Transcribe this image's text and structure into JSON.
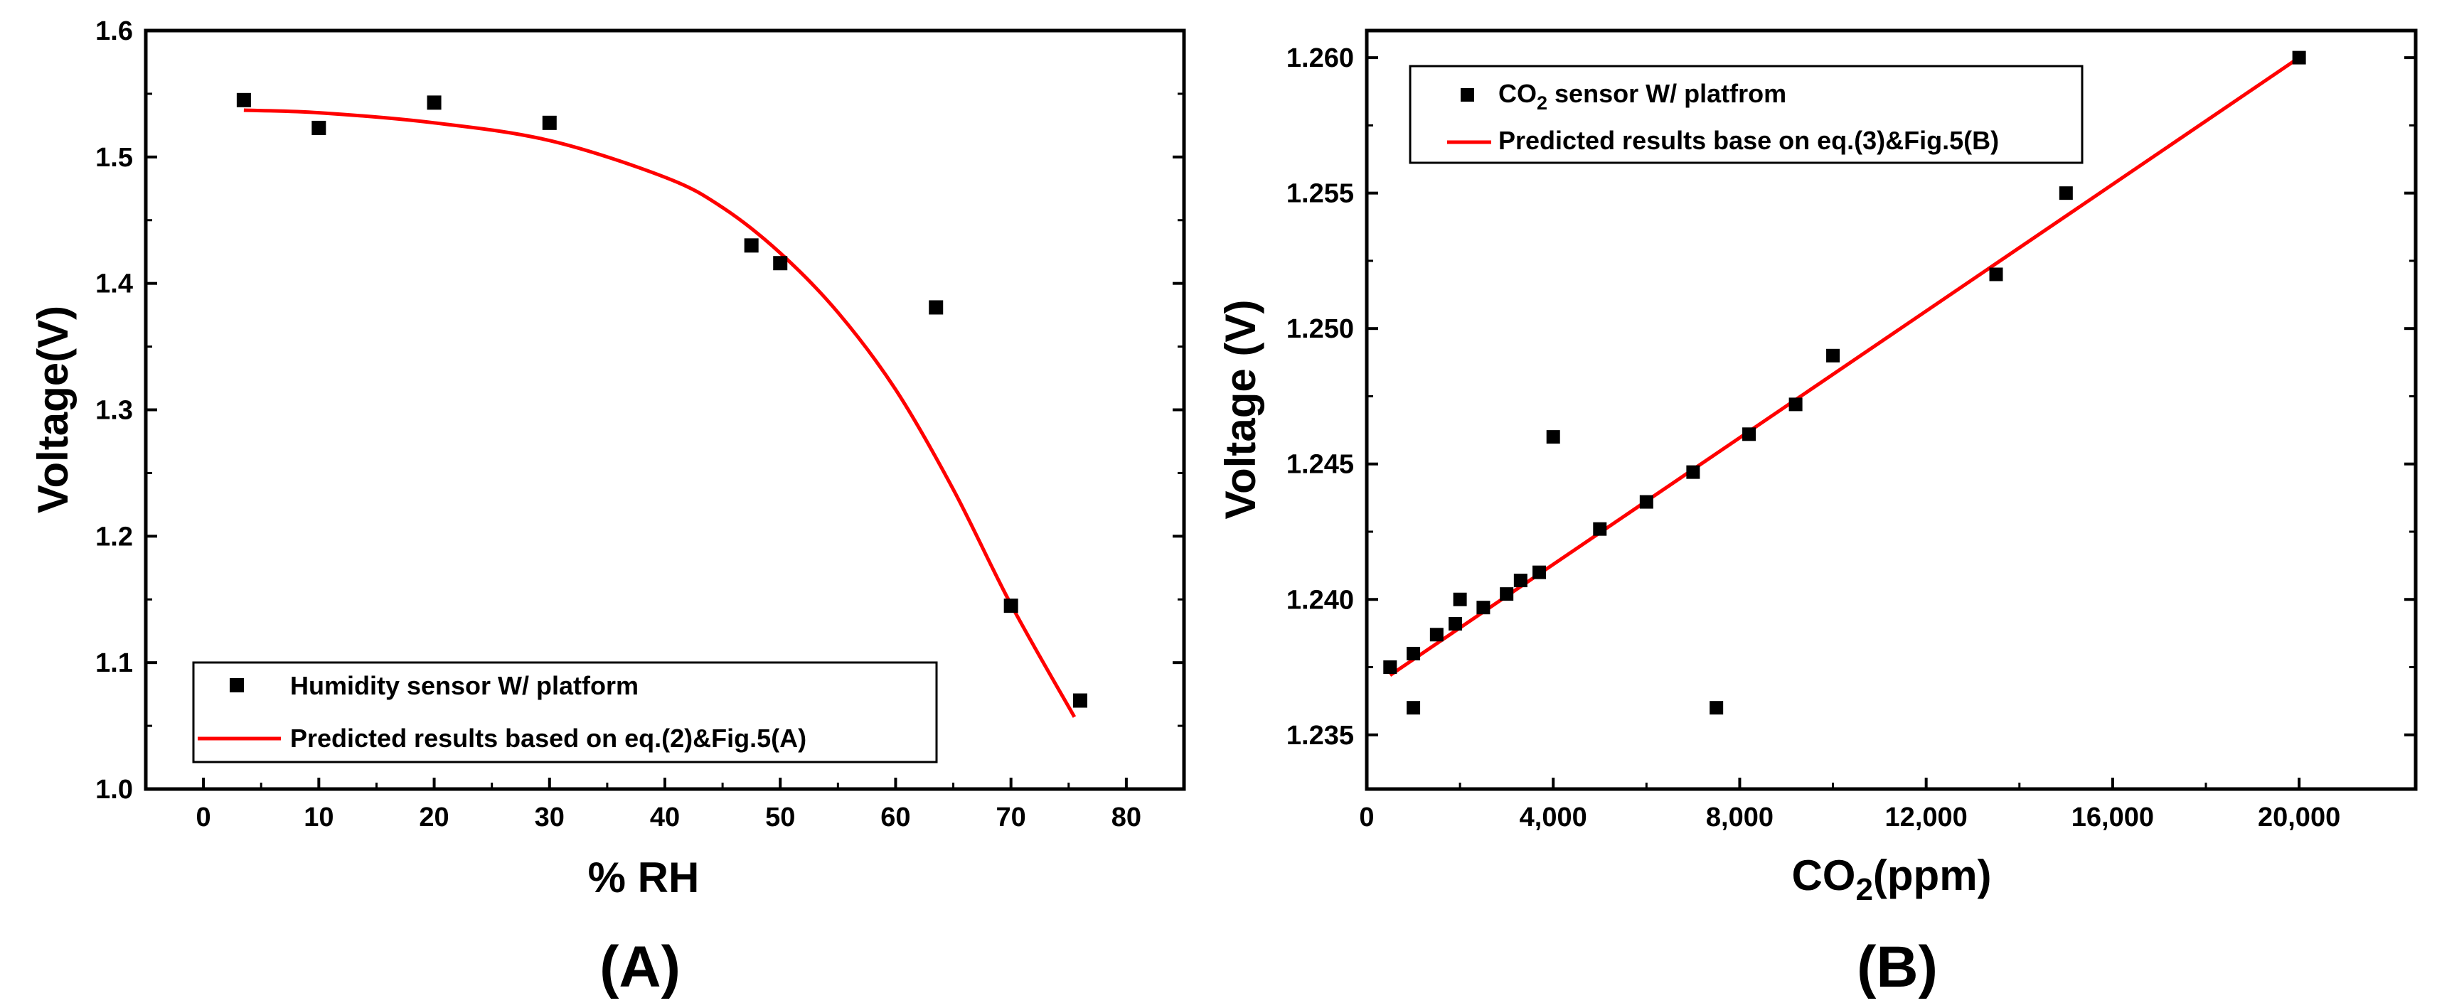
{
  "chart_data": [
    {
      "type": "scatter",
      "panel_label": "(A)",
      "xlabel": "% RH",
      "ylabel": "Voltage(V)",
      "xlim": [
        -5,
        85
      ],
      "ylim": [
        1.0,
        1.6
      ],
      "xticks": [
        0,
        10,
        20,
        30,
        40,
        50,
        60,
        70,
        80
      ],
      "xtick_labels": [
        "0",
        "10",
        "20",
        "30",
        "40",
        "50",
        "60",
        "70",
        "80"
      ],
      "yticks": [
        1.0,
        1.1,
        1.2,
        1.3,
        1.4,
        1.5,
        1.6
      ],
      "ytick_labels": [
        "1.0",
        "1.1",
        "1.2",
        "1.3",
        "1.4",
        "1.5",
        "1.6"
      ],
      "legend_position": "bottom-left",
      "series": [
        {
          "name": "Humidity sensor W/ platform",
          "kind": "scatter",
          "color": "#000000",
          "marker": "square",
          "x": [
            3.5,
            10,
            20,
            30,
            47.5,
            50,
            63.5,
            70,
            76
          ],
          "y": [
            1.545,
            1.523,
            1.543,
            1.527,
            1.43,
            1.416,
            1.381,
            1.145,
            1.07
          ]
        },
        {
          "name": "Predicted results based on eq.(2)&Fig.5(A)",
          "kind": "line",
          "color": "#ff0000",
          "x": [
            3.5,
            10,
            20,
            30,
            40,
            45,
            50,
            55,
            60,
            65,
            70,
            75.5
          ],
          "y": [
            1.537,
            1.535,
            1.527,
            1.513,
            1.484,
            1.46,
            1.424,
            1.377,
            1.316,
            1.237,
            1.146,
            1.057
          ]
        }
      ]
    },
    {
      "type": "scatter",
      "panel_label": "(B)",
      "xlabel_main": "CO",
      "xlabel_sub": "2",
      "xlabel_rest": "(ppm)",
      "ylabel": "Voltage (V)",
      "xlim": [
        0,
        22500
      ],
      "ylim": [
        1.233,
        1.261
      ],
      "xticks": [
        0,
        4000,
        8000,
        12000,
        16000,
        20000
      ],
      "xtick_labels": [
        "0",
        "4,000",
        "8,000",
        "12,000",
        "16,000",
        "20,000"
      ],
      "yticks": [
        1.235,
        1.24,
        1.245,
        1.25,
        1.255,
        1.26
      ],
      "ytick_labels": [
        "1.235",
        "1.240",
        "1.245",
        "1.250",
        "1.255",
        "1.260"
      ],
      "legend_position": "top-left",
      "series": [
        {
          "name_main": "CO",
          "name_sub": "2",
          "name_rest": " sensor W/ platfrom",
          "kind": "scatter",
          "color": "#000000",
          "marker": "square",
          "x": [
            500,
            1000,
            1000,
            1500,
            1900,
            2000,
            2500,
            3000,
            3300,
            3700,
            4000,
            5000,
            6000,
            7000,
            7500,
            8200,
            9200,
            10000,
            13500,
            15000,
            20000
          ],
          "y": [
            1.2375,
            1.238,
            1.236,
            1.2387,
            1.2391,
            1.24,
            1.2397,
            1.2402,
            1.2407,
            1.241,
            1.246,
            1.2426,
            1.2436,
            1.2447,
            1.236,
            1.2461,
            1.2472,
            1.249,
            1.252,
            1.255,
            1.26
          ]
        },
        {
          "name": "Predicted results base on eq.(3)&Fig.5(B)",
          "kind": "line",
          "color": "#ff0000",
          "x": [
            500,
            20000
          ],
          "y": [
            1.2372,
            1.26
          ]
        }
      ]
    }
  ]
}
